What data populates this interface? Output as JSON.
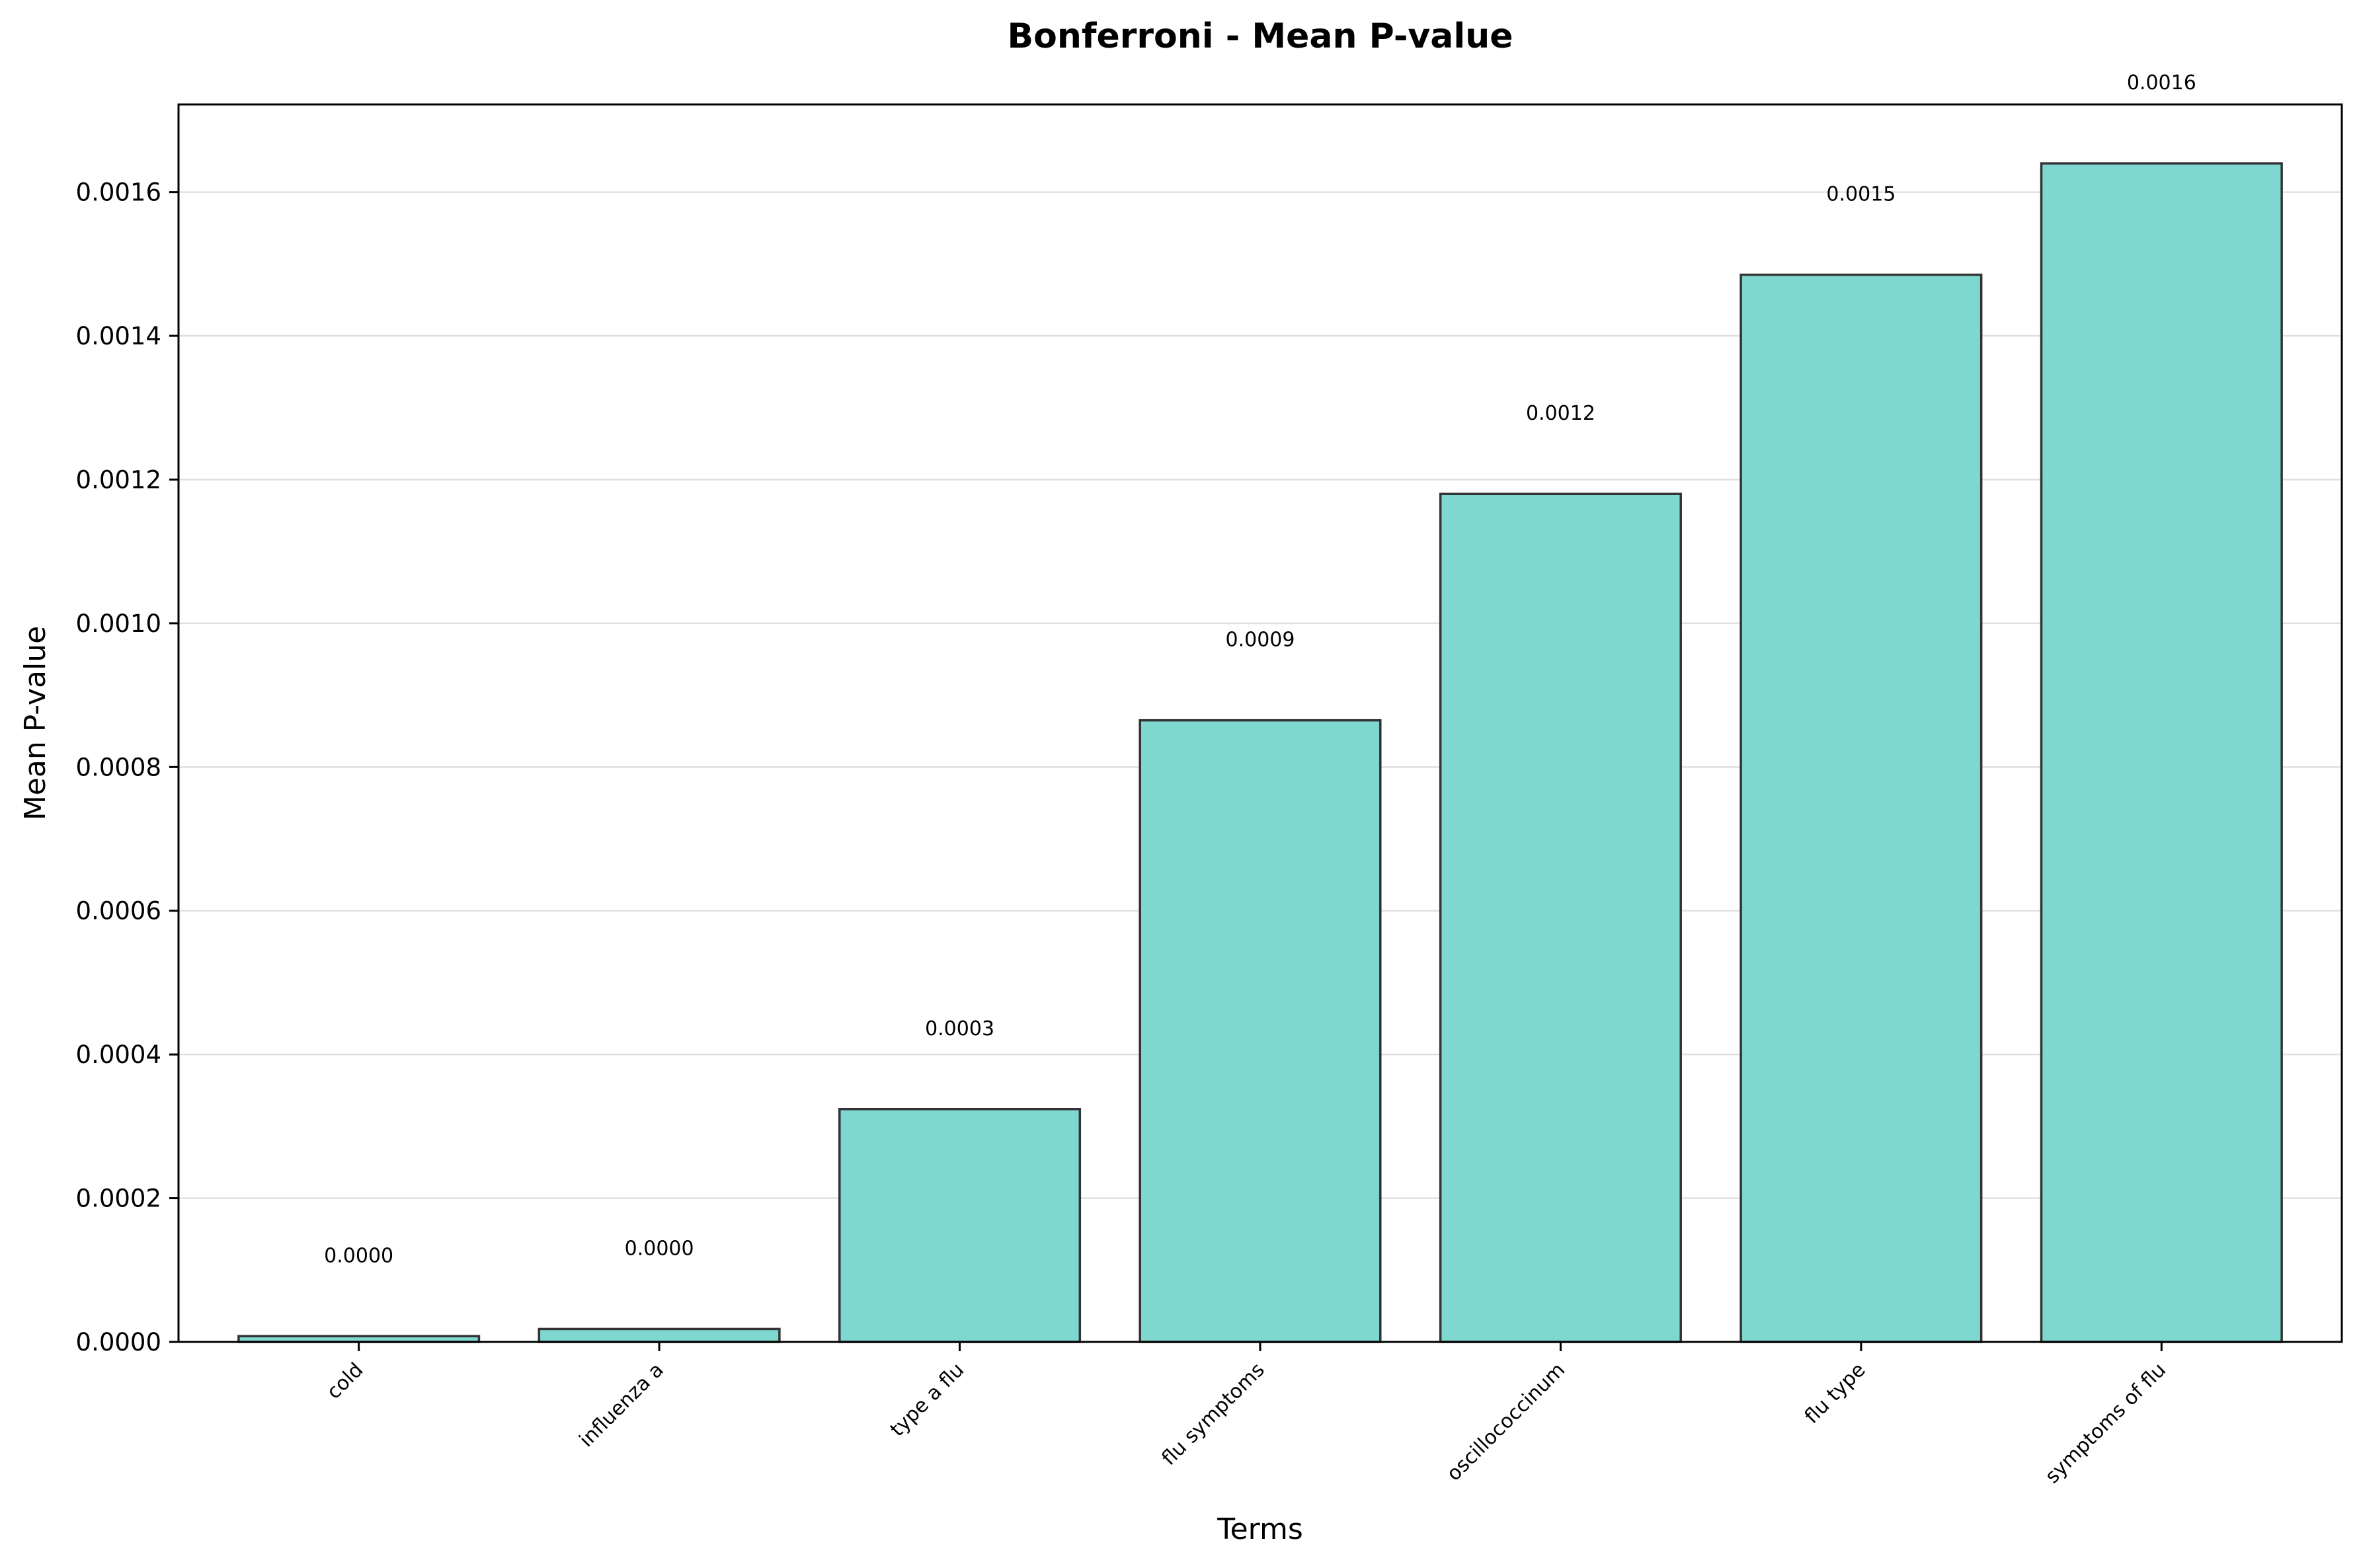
{
  "chart_data": {
    "type": "bar",
    "title": "Bonferroni - Mean P-value",
    "xlabel": "Terms",
    "ylabel": "Mean P-value",
    "categories": [
      "cold",
      "influenza a",
      "type a flu",
      "flu symptoms",
      "oscillococcinum",
      "flu type",
      "symptoms of flu"
    ],
    "values": [
      8e-06,
      1.8e-05,
      0.000324,
      0.000865,
      0.00118,
      0.001485,
      0.00164
    ],
    "value_labels": [
      "0.0000",
      "0.0000",
      "0.0003",
      "0.0009",
      "0.0012",
      "0.0015",
      "0.0016"
    ],
    "ylim": [
      0,
      0.001722
    ],
    "yticks": [
      0,
      0.0002,
      0.0004,
      0.0006,
      0.0008,
      0.001,
      0.0012,
      0.0014,
      0.0016
    ],
    "ytick_labels": [
      "0.0000",
      "0.0002",
      "0.0004",
      "0.0006",
      "0.0008",
      "0.0010",
      "0.0012",
      "0.0014",
      "0.0016"
    ],
    "grid": "y",
    "legend": "none",
    "colors": {
      "bar_fill": "#7fd8d0",
      "bar_edge": "#333333",
      "grid": "#e0e0e0",
      "axes": "#000000"
    }
  }
}
